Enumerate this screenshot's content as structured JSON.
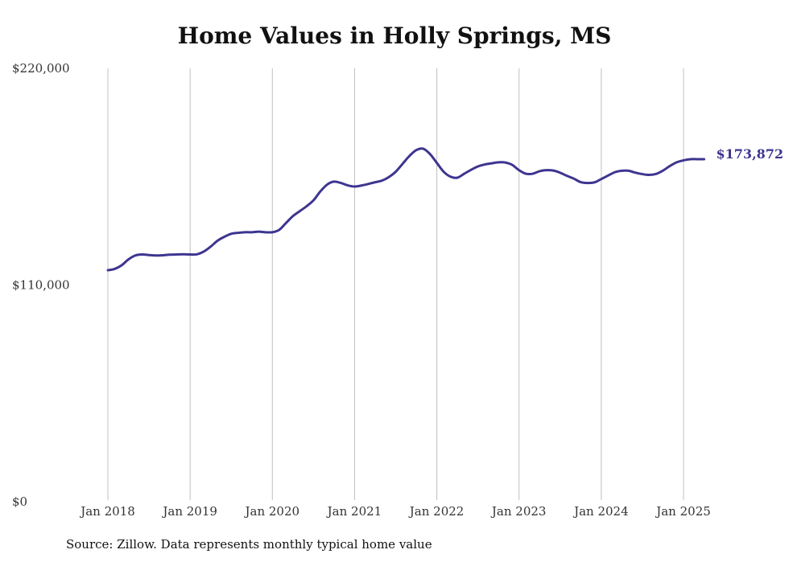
{
  "chart_data": {
    "type": "line",
    "title": "Home Values in Holly Springs, MS",
    "source_note": "Source: Zillow. Data represents monthly typical home value",
    "ylim": [
      0,
      220000
    ],
    "yticks": [
      {
        "value": 0,
        "label": "$0"
      },
      {
        "value": 110000,
        "label": "$110,000"
      },
      {
        "value": 220000,
        "label": "$220,000"
      }
    ],
    "xticks": [
      {
        "value": "2018-01",
        "label": "Jan 2018"
      },
      {
        "value": "2019-01",
        "label": "Jan 2019"
      },
      {
        "value": "2020-01",
        "label": "Jan 2020"
      },
      {
        "value": "2021-01",
        "label": "Jan 2021"
      },
      {
        "value": "2022-01",
        "label": "Jan 2022"
      },
      {
        "value": "2023-01",
        "label": "Jan 2023"
      },
      {
        "value": "2024-01",
        "label": "Jan 2024"
      },
      {
        "value": "2025-01",
        "label": "Jan 2025"
      }
    ],
    "xlim": [
      "2018-01",
      "2025-01"
    ],
    "grid": {
      "vertical": true,
      "horizontal": false
    },
    "line_color": "#3d3590",
    "grid_color": "#c0c0c0",
    "end_label": "$173,872",
    "series": [
      {
        "x": [
          "2018-01",
          "2018-02",
          "2018-03",
          "2018-04",
          "2018-05",
          "2018-06",
          "2018-07",
          "2018-08",
          "2018-09",
          "2018-10",
          "2018-11",
          "2018-12",
          "2019-01",
          "2019-02",
          "2019-03",
          "2019-04",
          "2019-05",
          "2019-06",
          "2019-07",
          "2019-08",
          "2019-09",
          "2019-10",
          "2019-11",
          "2019-12",
          "2020-01",
          "2020-02",
          "2020-03",
          "2020-04",
          "2020-05",
          "2020-06",
          "2020-07",
          "2020-08",
          "2020-09",
          "2020-10",
          "2020-11",
          "2020-12",
          "2021-01",
          "2021-02",
          "2021-03",
          "2021-04",
          "2021-05",
          "2021-06",
          "2021-07",
          "2021-08",
          "2021-09",
          "2021-10",
          "2021-11",
          "2021-12",
          "2022-01",
          "2022-02",
          "2022-03",
          "2022-04",
          "2022-05",
          "2022-06",
          "2022-07",
          "2022-08",
          "2022-09",
          "2022-10",
          "2022-11",
          "2022-12",
          "2023-01",
          "2023-02",
          "2023-03",
          "2023-04",
          "2023-05",
          "2023-06",
          "2023-07",
          "2023-08",
          "2023-09",
          "2023-10",
          "2023-11",
          "2023-12",
          "2024-01",
          "2024-02",
          "2024-03",
          "2024-04",
          "2024-05",
          "2024-06",
          "2024-07",
          "2024-08",
          "2024-09",
          "2024-10",
          "2024-11",
          "2024-12",
          "2025-01",
          "2025-02",
          "2025-03",
          "2025-04"
        ],
        "values": [
          117500,
          118200,
          120000,
          123000,
          125000,
          125500,
          125200,
          125000,
          125100,
          125400,
          125500,
          125600,
          125500,
          125600,
          127000,
          129500,
          132500,
          134500,
          136000,
          136500,
          136800,
          136800,
          137100,
          136800,
          136800,
          138000,
          141500,
          145000,
          147500,
          150000,
          153000,
          157500,
          161000,
          162500,
          161800,
          160600,
          160000,
          160500,
          161300,
          162200,
          163000,
          164800,
          167500,
          171500,
          175500,
          178500,
          179200,
          176500,
          172000,
          167500,
          165000,
          164500,
          166500,
          168500,
          170200,
          171200,
          171800,
          172300,
          172200,
          171000,
          168300,
          166500,
          166500,
          167800,
          168300,
          168100,
          167000,
          165400,
          164000,
          162200,
          161800,
          162100,
          163800,
          165600,
          167300,
          168000,
          168000,
          167000,
          166300,
          165900,
          166400,
          168100,
          170400,
          172300,
          173300,
          173900,
          173900,
          173872
        ]
      }
    ]
  }
}
